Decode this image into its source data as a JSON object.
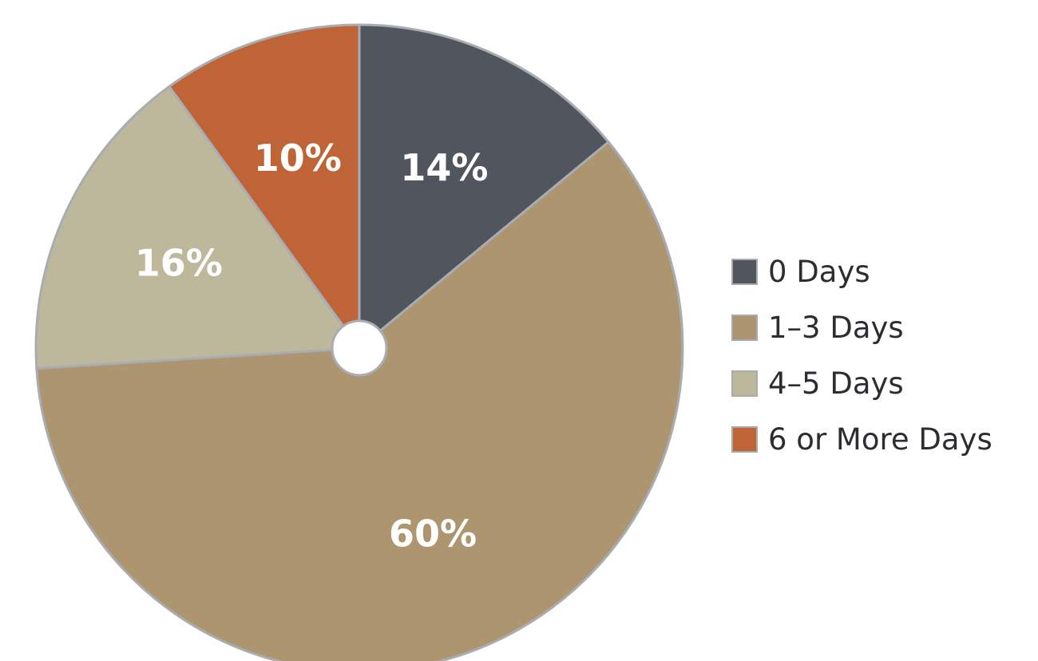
{
  "chart_data": {
    "type": "pie",
    "categories": [
      "0 Days",
      "1–3 Days",
      "4–5 Days",
      "6 or More Days"
    ],
    "values": [
      14,
      60,
      16,
      10
    ],
    "value_labels": [
      "14%",
      "60%",
      "16%",
      "10%"
    ],
    "colors": [
      "#51565e",
      "#ad966f",
      "#bdb79b",
      "#be6437"
    ],
    "slice_border_color": "#a9adb3",
    "start_angle": "12 o'clock",
    "direction": "clockwise",
    "center_hole": true,
    "legend_position": "right"
  }
}
